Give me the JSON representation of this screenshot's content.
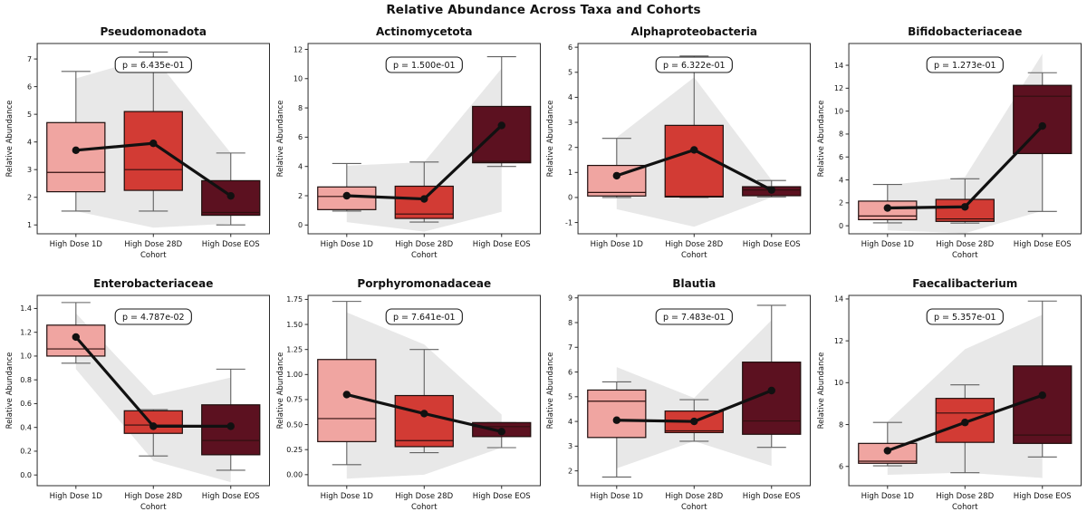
{
  "figure": {
    "title": "Relative Abundance Across Taxa and Cohorts"
  },
  "style": {
    "box_fill_colors": [
      "#F0A5A1",
      "#D23B34",
      "#5C1120"
    ],
    "box_edge_color": "#1F0E0D",
    "median_color": "#30100F",
    "whisker_color": "#616161",
    "band_color": "#E8E8E8",
    "mean_line_color": "#111111",
    "frame_color": "#2B2B2B",
    "text_color": "#111111",
    "pbox_bg": "#FFFFFF",
    "pbox_border": "#1A1A1A"
  },
  "chart_data": [
    {
      "type": "box",
      "title": "Pseudomonadota",
      "p_label": "p = 6.435e-01",
      "ylabel": "Relative Abundance",
      "xlabel": "Cohort",
      "categories": [
        "High Dose 1D",
        "High Dose 28D",
        "High Dose EOS"
      ],
      "ylim": [
        0.68,
        7.56
      ],
      "yticks": [
        1,
        2,
        3,
        4,
        5,
        6,
        7
      ],
      "ytick_labels": [
        "1",
        "2",
        "3",
        "4",
        "5",
        "6",
        "7"
      ],
      "boxes": [
        {
          "whislo": 1.5,
          "q1": 2.2,
          "med": 2.9,
          "q3": 4.7,
          "whishi": 6.55,
          "mean": 3.7
        },
        {
          "whislo": 1.5,
          "q1": 2.25,
          "med": 3.0,
          "q3": 5.1,
          "whishi": 7.25,
          "mean": 3.95
        },
        {
          "whislo": 1.0,
          "q1": 1.35,
          "med": 1.45,
          "q3": 2.6,
          "whishi": 3.6,
          "mean": 2.05
        }
      ],
      "band_upper": [
        6.3,
        7.1,
        3.6
      ],
      "band_lower": [
        1.5,
        0.9,
        1.05
      ]
    },
    {
      "type": "box",
      "title": "Actinomycetota",
      "p_label": "p = 1.500e-01",
      "ylabel": "Relative Abundance",
      "xlabel": "Cohort",
      "categories": [
        "High Dose 1D",
        "High Dose 28D",
        "High Dose EOS"
      ],
      "ylim": [
        -0.6,
        12.4
      ],
      "yticks": [
        0,
        2,
        4,
        6,
        8,
        10,
        12
      ],
      "ytick_labels": [
        "0",
        "2",
        "4",
        "6",
        "8",
        "10",
        "12"
      ],
      "boxes": [
        {
          "whislo": 0.95,
          "q1": 1.05,
          "med": 1.95,
          "q3": 2.6,
          "whishi": 4.2,
          "mean": 2.0
        },
        {
          "whislo": 0.2,
          "q1": 0.45,
          "med": 0.75,
          "q3": 2.65,
          "whishi": 4.3,
          "mean": 1.78
        },
        {
          "whislo": 4.0,
          "q1": 4.25,
          "med": 4.35,
          "q3": 8.1,
          "whishi": 11.5,
          "mean": 6.8
        }
      ],
      "band_upper": [
        4.05,
        4.3,
        10.7
      ],
      "band_lower": [
        0.2,
        -0.45,
        0.9
      ]
    },
    {
      "type": "box",
      "title": "Alphaproteobacteria",
      "p_label": "p = 6.322e-01",
      "ylabel": "Relative Abundance",
      "xlabel": "Cohort",
      "categories": [
        "High Dose 1D",
        "High Dose 28D",
        "High Dose EOS"
      ],
      "ylim": [
        -1.45,
        6.15
      ],
      "yticks": [
        -1,
        0,
        1,
        2,
        3,
        4,
        5,
        6
      ],
      "ytick_labels": [
        "-1",
        "0",
        "1",
        "2",
        "3",
        "4",
        "5",
        "6"
      ],
      "boxes": [
        {
          "whislo": 0.0,
          "q1": 0.06,
          "med": 0.2,
          "q3": 1.28,
          "whishi": 2.36,
          "mean": 0.87
        },
        {
          "whislo": 0.0,
          "q1": 0.02,
          "med": 0.05,
          "q3": 2.88,
          "whishi": 5.65,
          "mean": 1.9
        },
        {
          "whislo": 0.02,
          "q1": 0.07,
          "med": 0.3,
          "q3": 0.43,
          "whishi": 0.68,
          "mean": 0.3
        }
      ],
      "band_upper": [
        2.4,
        4.8,
        0.7
      ],
      "band_lower": [
        -0.47,
        -1.17,
        0.0
      ]
    },
    {
      "type": "box",
      "title": "Bifidobacteriaceae",
      "p_label": "p = 1.273e-01",
      "ylabel": "Relative Abundance",
      "xlabel": "Cohort",
      "categories": [
        "High Dose 1D",
        "High Dose 28D",
        "High Dose EOS"
      ],
      "ylim": [
        -0.7,
        15.9
      ],
      "yticks": [
        0,
        2,
        4,
        6,
        8,
        10,
        12,
        14
      ],
      "ytick_labels": [
        "0",
        "2",
        "4",
        "6",
        "8",
        "10",
        "12",
        "14"
      ],
      "boxes": [
        {
          "whislo": 0.25,
          "q1": 0.53,
          "med": 0.85,
          "q3": 2.15,
          "whishi": 3.6,
          "mean": 1.55
        },
        {
          "whislo": 0.23,
          "q1": 0.38,
          "med": 0.6,
          "q3": 2.3,
          "whishi": 4.1,
          "mean": 1.65
        },
        {
          "whislo": 1.25,
          "q1": 6.3,
          "med": 11.3,
          "q3": 12.25,
          "whishi": 13.35,
          "mean": 8.7
        }
      ],
      "band_upper": [
        3.55,
        4.25,
        15.0
      ],
      "band_lower": [
        -0.4,
        -0.65,
        1.3
      ]
    },
    {
      "type": "box",
      "title": "Enterobacteriaceae",
      "p_label": "p = 4.787e-02",
      "ylabel": "Relative Abundance",
      "xlabel": "Cohort",
      "categories": [
        "High Dose 1D",
        "High Dose 28D",
        "High Dose EOS"
      ],
      "ylim": [
        -0.09,
        1.51
      ],
      "yticks": [
        0.0,
        0.2,
        0.4,
        0.6,
        0.8,
        1.0,
        1.2,
        1.4
      ],
      "ytick_labels": [
        "0.0",
        "0.2",
        "0.4",
        "0.6",
        "0.8",
        "1.0",
        "1.2",
        "1.4"
      ],
      "boxes": [
        {
          "whislo": 0.94,
          "q1": 1.0,
          "med": 1.06,
          "q3": 1.26,
          "whishi": 1.45,
          "mean": 1.16
        },
        {
          "whislo": 0.16,
          "q1": 0.35,
          "med": 0.42,
          "q3": 0.54,
          "whishi": 0.55,
          "mean": 0.41
        },
        {
          "whislo": 0.04,
          "q1": 0.17,
          "med": 0.29,
          "q3": 0.59,
          "whishi": 0.89,
          "mean": 0.41
        }
      ],
      "band_upper": [
        1.36,
        0.67,
        0.82
      ],
      "band_lower": [
        0.89,
        0.12,
        -0.06
      ]
    },
    {
      "type": "box",
      "title": "Porphyromonadaceae",
      "p_label": "p = 7.641e-01",
      "ylabel": "Relative Abundance",
      "xlabel": "Cohort",
      "categories": [
        "High Dose 1D",
        "High Dose 28D",
        "High Dose EOS"
      ],
      "ylim": [
        -0.11,
        1.79
      ],
      "yticks": [
        0.0,
        0.25,
        0.5,
        0.75,
        1.0,
        1.25,
        1.5,
        1.75
      ],
      "ytick_labels": [
        "0.00",
        "0.25",
        "0.50",
        "0.75",
        "1.00",
        "1.25",
        "1.50",
        "1.75"
      ],
      "boxes": [
        {
          "whislo": 0.1,
          "q1": 0.33,
          "med": 0.56,
          "q3": 1.15,
          "whishi": 1.73,
          "mean": 0.8
        },
        {
          "whislo": 0.22,
          "q1": 0.28,
          "med": 0.34,
          "q3": 0.79,
          "whishi": 1.25,
          "mean": 0.61
        },
        {
          "whislo": 0.27,
          "q1": 0.38,
          "med": 0.48,
          "q3": 0.52,
          "whishi": 0.52,
          "mean": 0.43
        }
      ],
      "band_upper": [
        1.62,
        1.3,
        0.6
      ],
      "band_lower": [
        -0.04,
        0.0,
        0.27
      ]
    },
    {
      "type": "box",
      "title": "Blautia",
      "p_label": "p = 7.483e-01",
      "ylabel": "Relative Abundance",
      "xlabel": "Cohort",
      "categories": [
        "High Dose 1D",
        "High Dose 28D",
        "High Dose EOS"
      ],
      "ylim": [
        1.4,
        9.1
      ],
      "yticks": [
        2,
        3,
        4,
        5,
        6,
        7,
        8,
        9
      ],
      "ytick_labels": [
        "2",
        "3",
        "4",
        "5",
        "6",
        "7",
        "8",
        "9"
      ],
      "boxes": [
        {
          "whislo": 1.75,
          "q1": 3.35,
          "med": 4.82,
          "q3": 5.27,
          "whishi": 5.6,
          "mean": 4.05
        },
        {
          "whislo": 3.2,
          "q1": 3.55,
          "med": 3.62,
          "q3": 4.42,
          "whishi": 4.88,
          "mean": 4.0
        },
        {
          "whislo": 2.95,
          "q1": 3.48,
          "med": 4.02,
          "q3": 6.4,
          "whishi": 8.7,
          "mean": 5.25
        }
      ],
      "band_upper": [
        6.2,
        4.95,
        8.1
      ],
      "band_lower": [
        2.1,
        3.2,
        2.2
      ]
    },
    {
      "type": "box",
      "title": "Faecalibacterium",
      "p_label": "p = 5.357e-01",
      "ylabel": "Relative Abundance",
      "xlabel": "Cohort",
      "categories": [
        "High Dose 1D",
        "High Dose 28D",
        "High Dose EOS"
      ],
      "ylim": [
        5.08,
        14.17
      ],
      "yticks": [
        6,
        8,
        10,
        12,
        14
      ],
      "ytick_labels": [
        "6",
        "8",
        "10",
        "12",
        "14"
      ],
      "boxes": [
        {
          "whislo": 6.03,
          "q1": 6.15,
          "med": 6.25,
          "q3": 7.1,
          "whishi": 8.1,
          "mean": 6.75
        },
        {
          "whislo": 5.7,
          "q1": 7.15,
          "med": 8.55,
          "q3": 9.25,
          "whishi": 9.9,
          "mean": 8.1
        },
        {
          "whislo": 6.45,
          "q1": 7.1,
          "med": 7.5,
          "q3": 10.8,
          "whishi": 13.9,
          "mean": 9.4
        }
      ],
      "band_upper": [
        8.15,
        11.6,
        13.25
      ],
      "band_lower": [
        5.6,
        5.7,
        5.45
      ]
    }
  ]
}
